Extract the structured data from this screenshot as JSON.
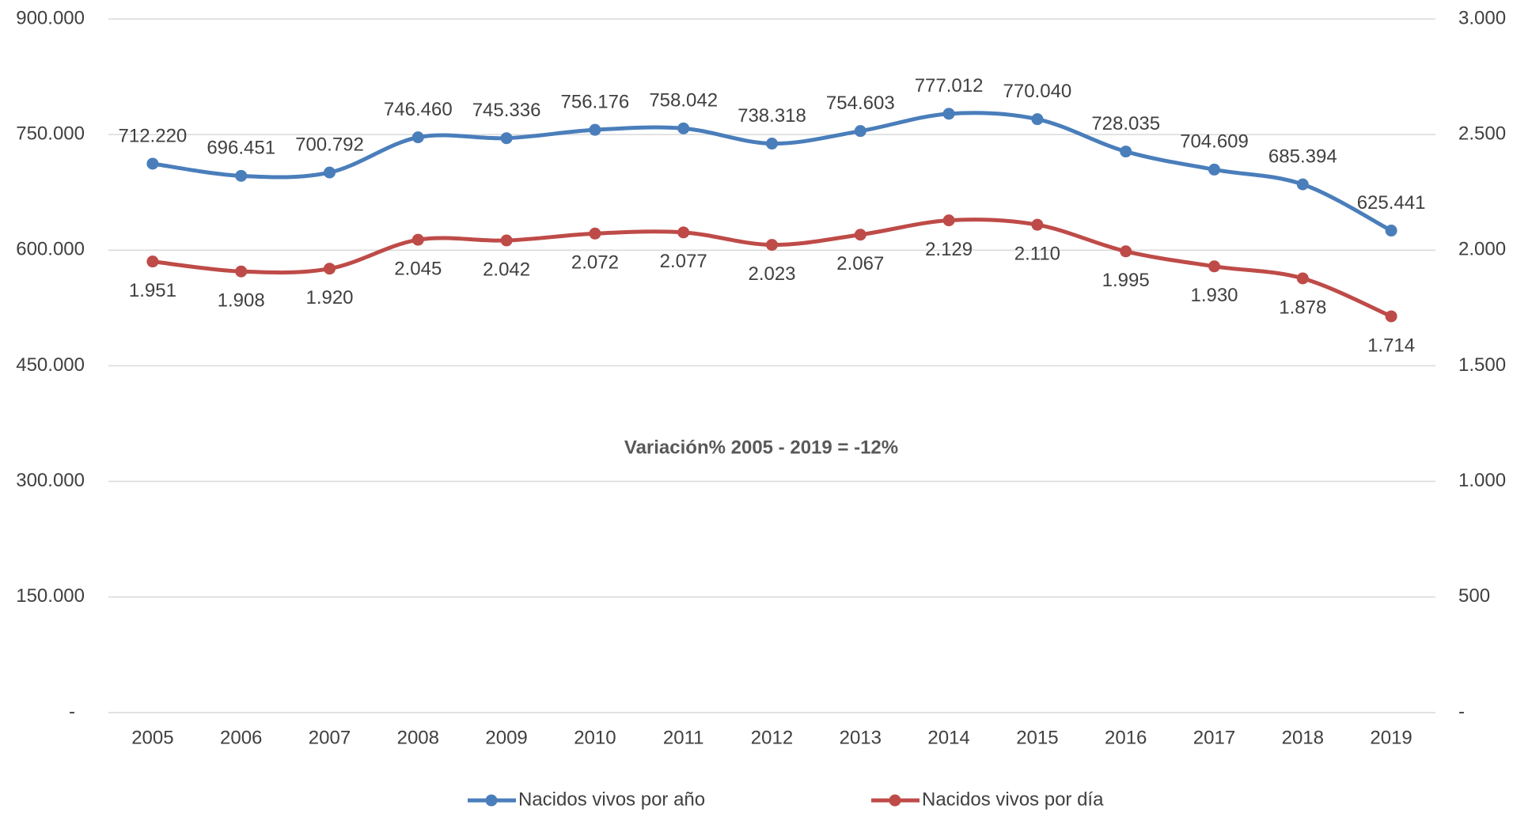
{
  "chart_data": {
    "type": "line",
    "annotation": "Variación% 2005 - 2019 = -12%",
    "categories": [
      "2005",
      "2006",
      "2007",
      "2008",
      "2009",
      "2010",
      "2011",
      "2012",
      "2013",
      "2014",
      "2015",
      "2016",
      "2017",
      "2018",
      "2019"
    ],
    "series": [
      {
        "name": "Nacidos vivos por año",
        "color": "#4a7ebb",
        "values": [
          712220,
          696451,
          700792,
          746460,
          745336,
          756176,
          758042,
          738318,
          754603,
          777012,
          770040,
          728035,
          704609,
          685394,
          625441
        ],
        "value_labels": [
          "712.220",
          "696.451",
          "700.792",
          "746.460",
          "745.336",
          "756.176",
          "758.042",
          "738.318",
          "754.603",
          "777.012",
          "770.040",
          "728.035",
          "704.609",
          "685.394",
          "625.441"
        ]
      },
      {
        "name": "Nacidos vivos por día",
        "color": "#be4b48",
        "axis": "y2",
        "values": [
          1951,
          1908,
          1920,
          2045,
          2042,
          2072,
          2077,
          2023,
          2067,
          2129,
          2110,
          1995,
          1930,
          1878,
          1714
        ],
        "value_labels": [
          "1.951",
          "1.908",
          "1.920",
          "2.045",
          "2.042",
          "2.072",
          "2.077",
          "2.023",
          "2.067",
          "2.129",
          "2.110",
          "1.995",
          "1.930",
          "1.878",
          "1.714"
        ]
      }
    ],
    "ylim": [
      0,
      900000
    ],
    "yticks": [
      {
        "value": 0,
        "label": "-"
      },
      {
        "value": 150000,
        "label": "150.000"
      },
      {
        "value": 300000,
        "label": "300.000"
      },
      {
        "value": 450000,
        "label": "450.000"
      },
      {
        "value": 600000,
        "label": "600.000"
      },
      {
        "value": 750000,
        "label": "750.000"
      },
      {
        "value": 900000,
        "label": "900.000"
      }
    ],
    "y2lim": [
      0,
      3000
    ],
    "y2ticks": [
      {
        "value": 0,
        "label": "-"
      },
      500,
      {
        "value": 1000,
        "label": "1.000"
      },
      {
        "value": 1500,
        "label": "1.500"
      },
      {
        "value": 2000,
        "label": "2.000"
      },
      {
        "value": 2500,
        "label": "2.500"
      },
      {
        "value": 3000,
        "label": "3.000"
      }
    ],
    "grid": true,
    "legend": "bottom"
  }
}
